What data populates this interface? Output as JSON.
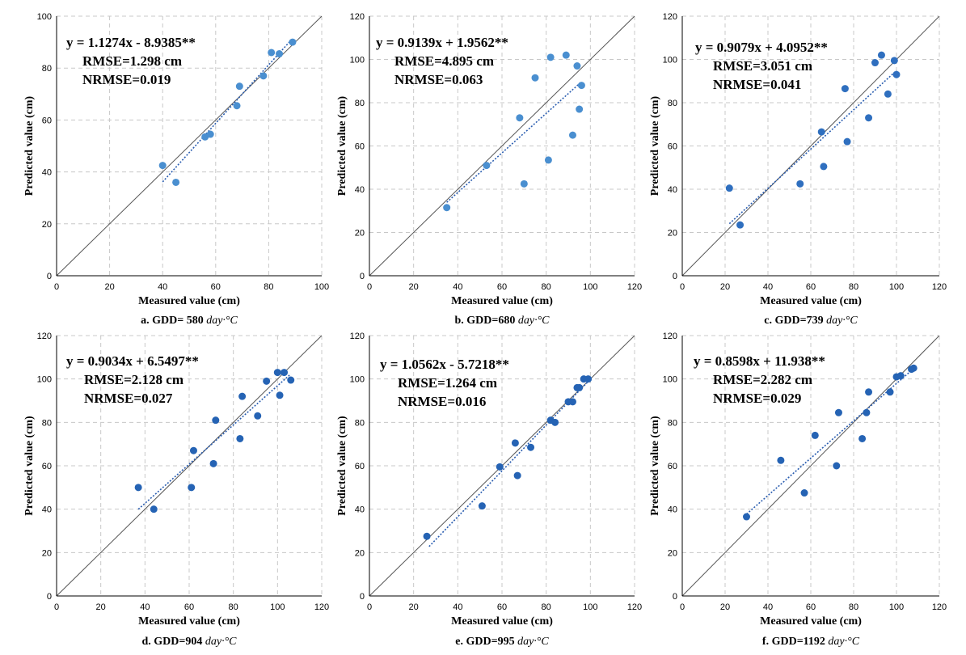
{
  "chart_data": [
    {
      "type": "scatter",
      "caption_prefix": "a. GDD= 580 ",
      "caption_unit": "day·°C",
      "xlabel": "Measured value (cm)",
      "ylabel": "Predicted value (cm)",
      "xlim": [
        0,
        100
      ],
      "ylim": [
        0,
        100
      ],
      "ticks": [
        0,
        20,
        40,
        60,
        80,
        100
      ],
      "grid": true,
      "equation": "y = 1.1274x - 8.9385**",
      "rmse": "RMSE=1.298 cm",
      "nrmse": "NRMSE=0.019",
      "point_color": "#4a8fd0",
      "trend": {
        "slope": 1.1274,
        "intercept": -8.9385,
        "x_range": [
          40,
          89
        ]
      },
      "points": [
        [
          40,
          42.5
        ],
        [
          45,
          36
        ],
        [
          56,
          53.5
        ],
        [
          58,
          54.5
        ],
        [
          68,
          65.5
        ],
        [
          69,
          73
        ],
        [
          78,
          77
        ],
        [
          81,
          86
        ],
        [
          84,
          85.5
        ],
        [
          89,
          90
        ]
      ]
    },
    {
      "type": "scatter",
      "caption_prefix": "b. GDD=680 ",
      "caption_unit": "day·°C",
      "xlabel": "Measured value (cm)",
      "ylabel": "Predicted value (cm)",
      "xlim": [
        0,
        120
      ],
      "ylim": [
        0,
        120
      ],
      "ticks": [
        0,
        20,
        40,
        60,
        80,
        100,
        120
      ],
      "grid": true,
      "equation": "y = 0.9139x + 1.9562**",
      "rmse": "RMSE=4.895 cm",
      "nrmse": "NRMSE=0.063",
      "point_color": "#4a8fd0",
      "trend": {
        "slope": 0.9139,
        "intercept": 1.9562,
        "x_range": [
          35,
          96
        ]
      },
      "points": [
        [
          35,
          31.5
        ],
        [
          53,
          51
        ],
        [
          68,
          73
        ],
        [
          70,
          42.5
        ],
        [
          75,
          91.5
        ],
        [
          81,
          53.5
        ],
        [
          82,
          101
        ],
        [
          89,
          102
        ],
        [
          92,
          65
        ],
        [
          94,
          97
        ],
        [
          95,
          77
        ],
        [
          96,
          88
        ]
      ]
    },
    {
      "type": "scatter",
      "caption_prefix": "c. GDD=739 ",
      "caption_unit": "day·°C",
      "xlabel": "Measured value (cm)",
      "ylabel": "Predicted value (cm)",
      "xlim": [
        0,
        120
      ],
      "ylim": [
        0,
        120
      ],
      "ticks": [
        0,
        20,
        40,
        60,
        80,
        100,
        120
      ],
      "grid": true,
      "equation": "y = 0.9079x + 4.0952**",
      "rmse": "RMSE=3.051 cm",
      "nrmse": "NRMSE=0.041",
      "point_color": "#2f6fbf",
      "trend": {
        "slope": 0.9079,
        "intercept": 4.0952,
        "x_range": [
          22,
          100
        ]
      },
      "points": [
        [
          22,
          40.5
        ],
        [
          27,
          23.5
        ],
        [
          55,
          42.5
        ],
        [
          65,
          66.5
        ],
        [
          66,
          50.5
        ],
        [
          76,
          86.5
        ],
        [
          77,
          62
        ],
        [
          87,
          73
        ],
        [
          90,
          98.5
        ],
        [
          93,
          102
        ],
        [
          96,
          84
        ],
        [
          99,
          99.5
        ],
        [
          100,
          93
        ]
      ]
    },
    {
      "type": "scatter",
      "caption_prefix": "d. GDD=904 ",
      "caption_unit": "day·°C",
      "xlabel": "Measured value (cm)",
      "ylabel": "Predicted value (cm)",
      "xlim": [
        0,
        120
      ],
      "ylim": [
        0,
        120
      ],
      "ticks": [
        0,
        20,
        40,
        60,
        80,
        100,
        120
      ],
      "grid": true,
      "equation": "y = 0.9034x + 6.5497**",
      "rmse": "RMSE=2.128 cm",
      "nrmse": "NRMSE=0.027",
      "point_color": "#2563b4",
      "trend": {
        "slope": 0.9034,
        "intercept": 6.5497,
        "x_range": [
          37,
          106
        ]
      },
      "points": [
        [
          37,
          50
        ],
        [
          44,
          40
        ],
        [
          61,
          50
        ],
        [
          62,
          67
        ],
        [
          71,
          61
        ],
        [
          72,
          81
        ],
        [
          83,
          72.5
        ],
        [
          84,
          92
        ],
        [
          91,
          83
        ],
        [
          95,
          99
        ],
        [
          100,
          103
        ],
        [
          101,
          92.5
        ],
        [
          103,
          103
        ],
        [
          106,
          99.5
        ]
      ]
    },
    {
      "type": "scatter",
      "caption_prefix": "e. GDD=995 ",
      "caption_unit": "day·°C",
      "xlabel": "Measured value (cm)",
      "ylabel": "Predicted value (cm)",
      "xlim": [
        0,
        120
      ],
      "ylim": [
        0,
        120
      ],
      "ticks": [
        0,
        20,
        40,
        60,
        80,
        100,
        120
      ],
      "grid": true,
      "equation": "y = 1.0562x - 5.7218**",
      "rmse": "RMSE=1.264 cm",
      "nrmse": "NRMSE=0.016",
      "point_color": "#2563b4",
      "trend": {
        "slope": 1.0562,
        "intercept": -5.7218,
        "x_range": [
          27,
          99
        ]
      },
      "points": [
        [
          26,
          27.5
        ],
        [
          51,
          41.5
        ],
        [
          59,
          59.5
        ],
        [
          66,
          70.5
        ],
        [
          67,
          55.5
        ],
        [
          73,
          68.5
        ],
        [
          82,
          81
        ],
        [
          84,
          80
        ],
        [
          90,
          89.5
        ],
        [
          92,
          89.5
        ],
        [
          94,
          96
        ],
        [
          95,
          96
        ],
        [
          97,
          100
        ],
        [
          99,
          100
        ]
      ]
    },
    {
      "type": "scatter",
      "caption_prefix": "f. GDD=1192 ",
      "caption_unit": "day·°C",
      "xlabel": "Measured value (cm)",
      "ylabel": "Predicted value (cm)",
      "xlim": [
        0,
        120
      ],
      "ylim": [
        0,
        120
      ],
      "ticks": [
        0,
        20,
        40,
        60,
        80,
        100,
        120
      ],
      "grid": true,
      "equation": "y = 0.8598x + 11.938**",
      "rmse": "RMSE=2.282 cm",
      "nrmse": "NRMSE=0.029",
      "point_color": "#2563b4",
      "trend": {
        "slope": 0.8598,
        "intercept": 11.938,
        "x_range": [
          30,
          108
        ]
      },
      "points": [
        [
          30,
          36.5
        ],
        [
          46,
          62.5
        ],
        [
          57,
          47.5
        ],
        [
          62,
          74
        ],
        [
          72,
          60
        ],
        [
          73,
          84.5
        ],
        [
          84,
          72.5
        ],
        [
          86,
          84.5
        ],
        [
          87,
          94
        ],
        [
          97,
          94
        ],
        [
          100,
          101
        ],
        [
          102,
          101.5
        ],
        [
          107,
          104.5
        ],
        [
          108,
          105
        ]
      ]
    }
  ]
}
